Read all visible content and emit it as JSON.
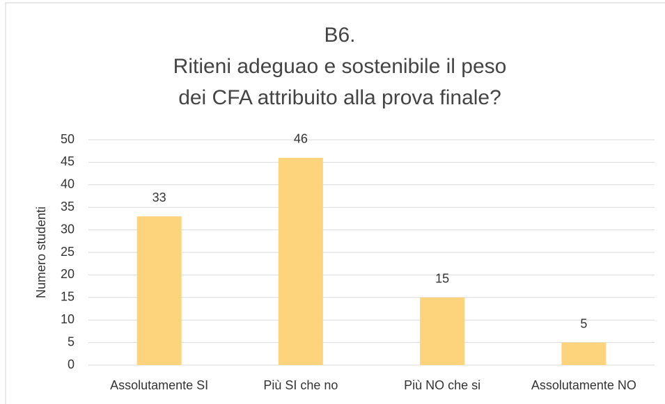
{
  "chart_data": {
    "type": "bar",
    "title": [
      "B6.",
      "Ritieni adeguao e sostenibile il peso",
      "dei CFA attribuito alla prova finale?"
    ],
    "y_label": "Numero studenti",
    "categories": [
      "Assolutamente SI",
      "Più SI che no",
      "Più NO che si",
      "Assolutamente NO"
    ],
    "values": [
      33,
      46,
      15,
      5
    ],
    "color": "#fdd47b",
    "ylim": [
      0,
      50
    ],
    "yticks": [
      0,
      5,
      10,
      15,
      20,
      25,
      30,
      35,
      40,
      45,
      50
    ],
    "grid": true
  }
}
